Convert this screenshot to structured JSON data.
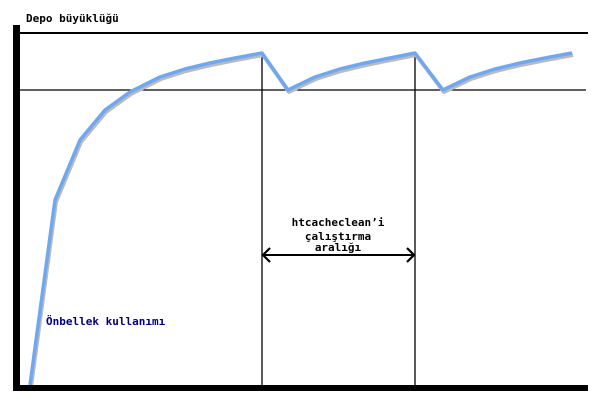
{
  "diagram": {
    "y_axis_label": "Depo büyüklüğü",
    "curve_label": "Önbellek kullanımı",
    "interval_label_lines": [
      "htcacheclean’i",
      "çalıştırma",
      "aralığı"
    ],
    "colors": {
      "curve": "#6fa8f0",
      "curve_label": "#000080",
      "axes": "#000000"
    }
  }
}
